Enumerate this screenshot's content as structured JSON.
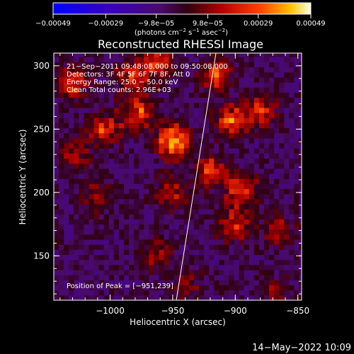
{
  "chart_data": {
    "type": "heatmap",
    "title": "Reconstructed RHESSI Image",
    "xlabel": "Heliocentric X (arcsec)",
    "ylabel": "Heliocentric Y (arcsec)",
    "xlim": [
      -1045,
      -847
    ],
    "ylim": [
      115,
      310
    ],
    "x_ticks": [
      -1000,
      -950,
      -900,
      -850
    ],
    "x_tick_labels": [
      "−1000",
      "−950",
      "−900",
      "−850"
    ],
    "y_ticks": [
      150,
      200,
      250,
      300
    ],
    "y_tick_labels": [
      "150",
      "200",
      "250",
      "300"
    ],
    "colorbar": {
      "range": [
        -0.00049,
        0.00049
      ],
      "ticks": [
        -0.00049,
        -0.00029,
        -9.8e-05,
        9.8e-05,
        0.00029,
        0.00049
      ],
      "tick_labels": [
        "−0.00049",
        "−0.00029",
        "−9.8e−05",
        "9.8e−05",
        "0.00029",
        "0.00049"
      ],
      "unit_main": "(photons cm",
      "unit_exp1": "−2",
      "unit_mid": " s",
      "unit_exp2": "−1",
      "unit_mid2": " asec",
      "unit_exp3": "−2",
      "unit_end": ")"
    },
    "annotations": [
      "21−Sep−2011 09:48:08.000 to 09:50:08.000",
      "Detectors: 3F 4F 5F 6F 7F 8F, Att 0",
      "Energy Range: 25.0 − 50.0 keV",
      "Clean    Total counts: 2.96E+03"
    ],
    "peak_label": "Position of Peak = [−951,239]",
    "peak": [
      -951,
      239
    ],
    "hotspots": [
      {
        "x": -951,
        "y": 239,
        "amp": 0.00049
      },
      {
        "x": -1005,
        "y": 248,
        "amp": 0.0003
      },
      {
        "x": -978,
        "y": 262,
        "amp": 0.00032
      },
      {
        "x": -1032,
        "y": 285,
        "amp": 0.0003
      },
      {
        "x": -985,
        "y": 290,
        "amp": 0.00026
      },
      {
        "x": -963,
        "y": 300,
        "amp": 0.00028
      },
      {
        "x": -918,
        "y": 290,
        "amp": 0.0003
      },
      {
        "x": -905,
        "y": 255,
        "amp": 0.00034
      },
      {
        "x": -882,
        "y": 262,
        "amp": 0.00028
      },
      {
        "x": -922,
        "y": 215,
        "amp": 0.0003
      },
      {
        "x": -897,
        "y": 200,
        "amp": 0.00032
      },
      {
        "x": -903,
        "y": 172,
        "amp": 0.00028
      },
      {
        "x": -868,
        "y": 168,
        "amp": 0.0002
      },
      {
        "x": -955,
        "y": 198,
        "amp": 0.00026
      },
      {
        "x": -1012,
        "y": 195,
        "amp": 0.00018
      },
      {
        "x": -965,
        "y": 150,
        "amp": 0.00018
      },
      {
        "x": -1030,
        "y": 228,
        "amp": 0.00018
      },
      {
        "x": -940,
        "y": 125,
        "amp": 0.00014
      },
      {
        "x": -872,
        "y": 120,
        "amp": 0.00016
      }
    ]
  },
  "timestamp": "14−May−2022 10:09"
}
